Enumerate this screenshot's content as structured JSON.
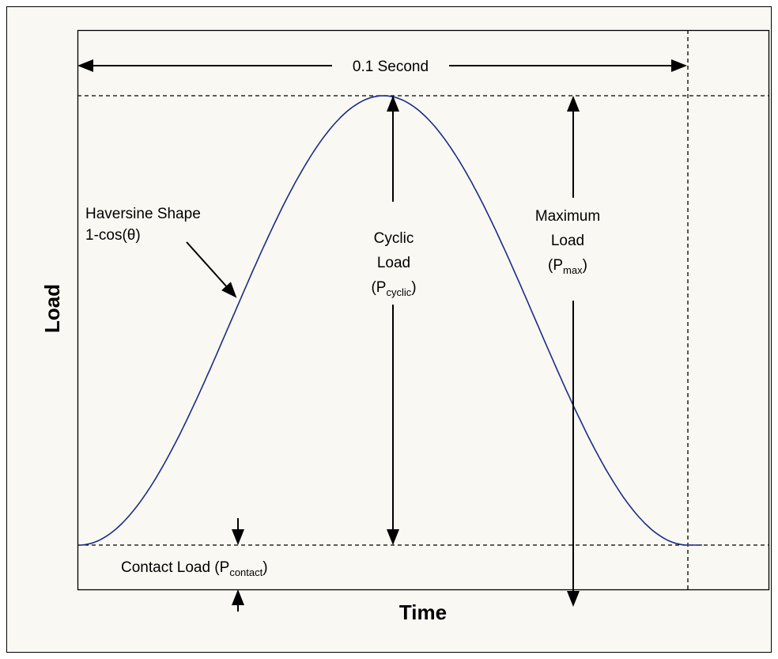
{
  "axis_labels": {
    "x": "Time",
    "y": "Load"
  },
  "annotations": {
    "duration": "0.1 Second",
    "haversine": {
      "line1": "Haversine Shape",
      "line2": "1-cos(θ)"
    },
    "cyclic": {
      "line1": "Cyclic",
      "line2": "Load",
      "open": "(P",
      "subscript": "cyclic",
      "close": ")"
    },
    "maximum": {
      "line1": "Maximum",
      "line2": "Load",
      "open": "(P",
      "subscript": "max",
      "close": ")"
    },
    "contact": {
      "open": "Contact Load (P",
      "subscript": "contact",
      "close": ")"
    }
  }
}
